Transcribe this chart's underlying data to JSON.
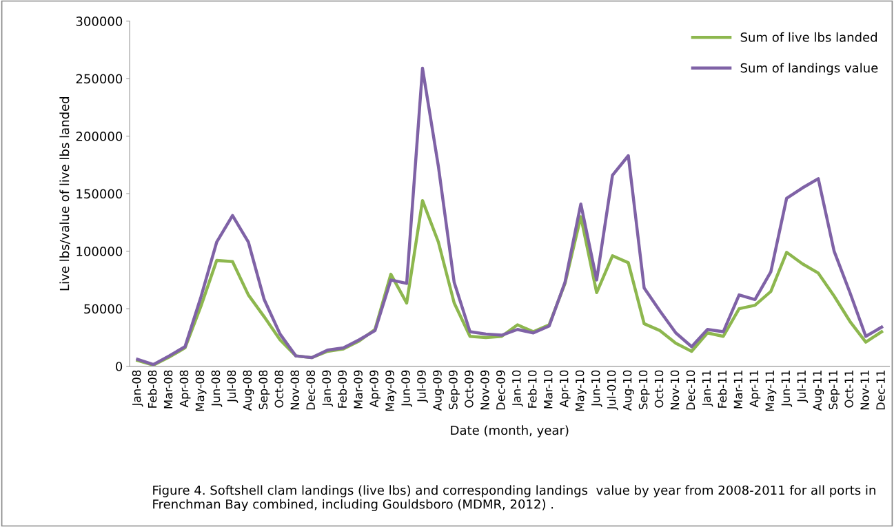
{
  "chart_data": {
    "type": "line",
    "xlabel": "Date (month, year)",
    "ylabel": "Live lbs/value of live lbs landed",
    "categories": [
      "Jan-08",
      "Feb-08",
      "Mar-08",
      "Apr-08",
      "May-08",
      "Jun-08",
      "Jul-08",
      "Aug-08",
      "Sep-08",
      "Oct-08",
      "Nov-08",
      "Dec-08",
      "Jan-09",
      "Feb-09",
      "Mar-09",
      "Apr-09",
      "May-09",
      "Jun-09",
      "Jul-09",
      "Aug-09",
      "Sep-09",
      "Oct-09",
      "Nov-09",
      "Dec-09",
      "Jan-10",
      "Feb-10",
      "Mar-10",
      "Apr-10",
      "May-10",
      "Jun-10",
      "Jul-010",
      "Aug-10",
      "Sep-10",
      "Oct-10",
      "Nov-10",
      "Dec-10",
      "Jan-11",
      "Feb-11",
      "Mar-11",
      "Apr-11",
      "May-11",
      "Jun-11",
      "Jul-11",
      "Aug-11",
      "Sep-11",
      "Oct-11",
      "Nov-11",
      "Dec-11"
    ],
    "series": [
      {
        "name": "Sum of live lbs landed",
        "color": "#8db74e",
        "values": [
          5000,
          1000,
          8000,
          16000,
          52000,
          92000,
          91000,
          62000,
          43000,
          23000,
          9000,
          7500,
          13000,
          15000,
          22000,
          32000,
          80000,
          55000,
          144000,
          108000,
          55000,
          26000,
          25000,
          26000,
          36000,
          30000,
          36000,
          72000,
          130000,
          64000,
          96000,
          90000,
          37000,
          31000,
          20000,
          13000,
          29000,
          26000,
          50000,
          53000,
          65000,
          99000,
          89000,
          81000,
          61000,
          39000,
          21000,
          30000
        ]
      },
      {
        "name": "Sum of landings value",
        "color": "#7f62a6",
        "values": [
          6000,
          1500,
          9000,
          17000,
          60000,
          108000,
          131000,
          108000,
          58000,
          28000,
          9000,
          7500,
          14000,
          16000,
          23000,
          31000,
          75000,
          72000,
          259000,
          174000,
          73000,
          30000,
          28000,
          27000,
          32000,
          29000,
          35000,
          73000,
          141000,
          75000,
          166000,
          183000,
          68000,
          48000,
          29000,
          17000,
          32000,
          30000,
          62000,
          58000,
          82000,
          146000,
          155000,
          163000,
          100000,
          64000,
          26000,
          34000
        ]
      }
    ],
    "ylim": [
      0,
      300000
    ],
    "yticks": [
      0,
      50000,
      100000,
      150000,
      200000,
      250000,
      300000
    ],
    "grid": false,
    "legend": "top right",
    "marker": "none",
    "line_style": "solid",
    "annotations": [
      "Figure 4. Softshell clam landings (live lbs) and corresponding landings  value by year from 2008-2011 for all ports in Frenchman Bay combined, including Gouldsboro (MDMR, 2012) ."
    ]
  }
}
